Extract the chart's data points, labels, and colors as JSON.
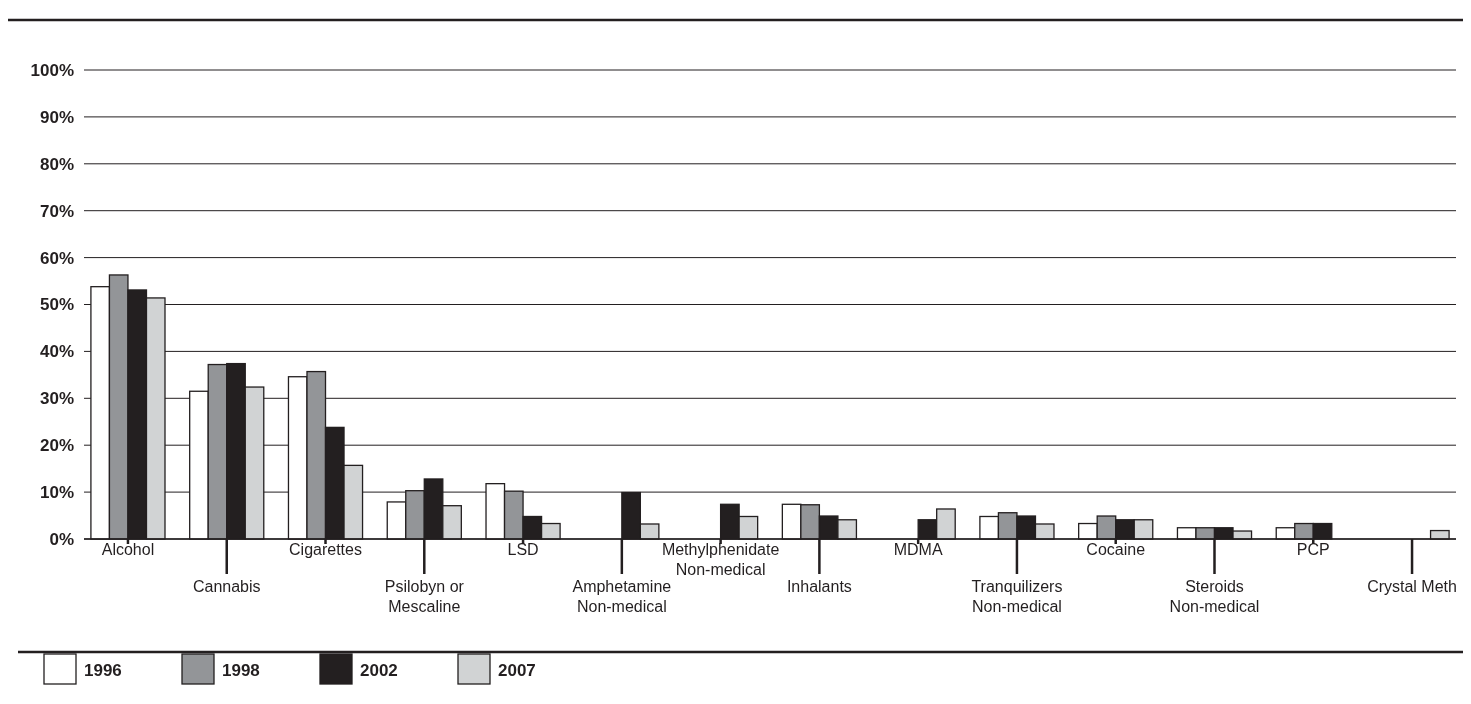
{
  "chart_data": {
    "type": "bar",
    "categories": [
      "Alcohol",
      "Cannabis",
      "Cigarettes",
      "Psilobyn or\nMescaline",
      "LSD",
      "Amphetamine\nNon-medical",
      "Methylphenidate\nNon-medical",
      "Inhalants",
      "MDMA",
      "Tranquilizers\nNon-medical",
      "Cocaine",
      "Steroids\nNon-medical",
      "PCP",
      "Crystal Meth"
    ],
    "series": [
      {
        "name": "1996",
        "color": "#ffffff",
        "values": [
          53.8,
          31.5,
          34.6,
          7.9,
          11.8,
          null,
          null,
          7.4,
          null,
          4.8,
          3.3,
          2.4,
          2.4,
          null
        ]
      },
      {
        "name": "1998",
        "color": "#939598",
        "values": [
          56.3,
          37.2,
          35.7,
          10.3,
          10.2,
          null,
          null,
          7.3,
          null,
          5.6,
          4.9,
          2.4,
          3.3,
          null
        ]
      },
      {
        "name": "2002",
        "color": "#231f20",
        "values": [
          53.1,
          37.4,
          23.8,
          12.8,
          4.8,
          9.9,
          7.4,
          4.9,
          4.1,
          4.9,
          4.1,
          2.4,
          3.3,
          null
        ]
      },
      {
        "name": "2007",
        "color": "#d1d3d4",
        "values": [
          51.4,
          32.4,
          15.7,
          7.1,
          3.3,
          3.2,
          4.8,
          4.1,
          6.4,
          3.2,
          4.1,
          1.7,
          null,
          1.8
        ]
      }
    ],
    "ylim": [
      0,
      100
    ],
    "yticks": [
      {
        "value": 0,
        "label": "0%"
      },
      {
        "value": 10,
        "label": "10%"
      },
      {
        "value": 20,
        "label": "20%"
      },
      {
        "value": 30,
        "label": "30%"
      },
      {
        "value": 40,
        "label": "40%"
      },
      {
        "value": 50,
        "label": "50%"
      },
      {
        "value": 60,
        "label": "60%"
      },
      {
        "value": 70,
        "label": "70%"
      },
      {
        "value": 80,
        "label": "80%"
      },
      {
        "value": 90,
        "label": "90%"
      },
      {
        "value": 100,
        "label": "100%"
      }
    ],
    "grid": "y",
    "legend": "bottom left"
  }
}
